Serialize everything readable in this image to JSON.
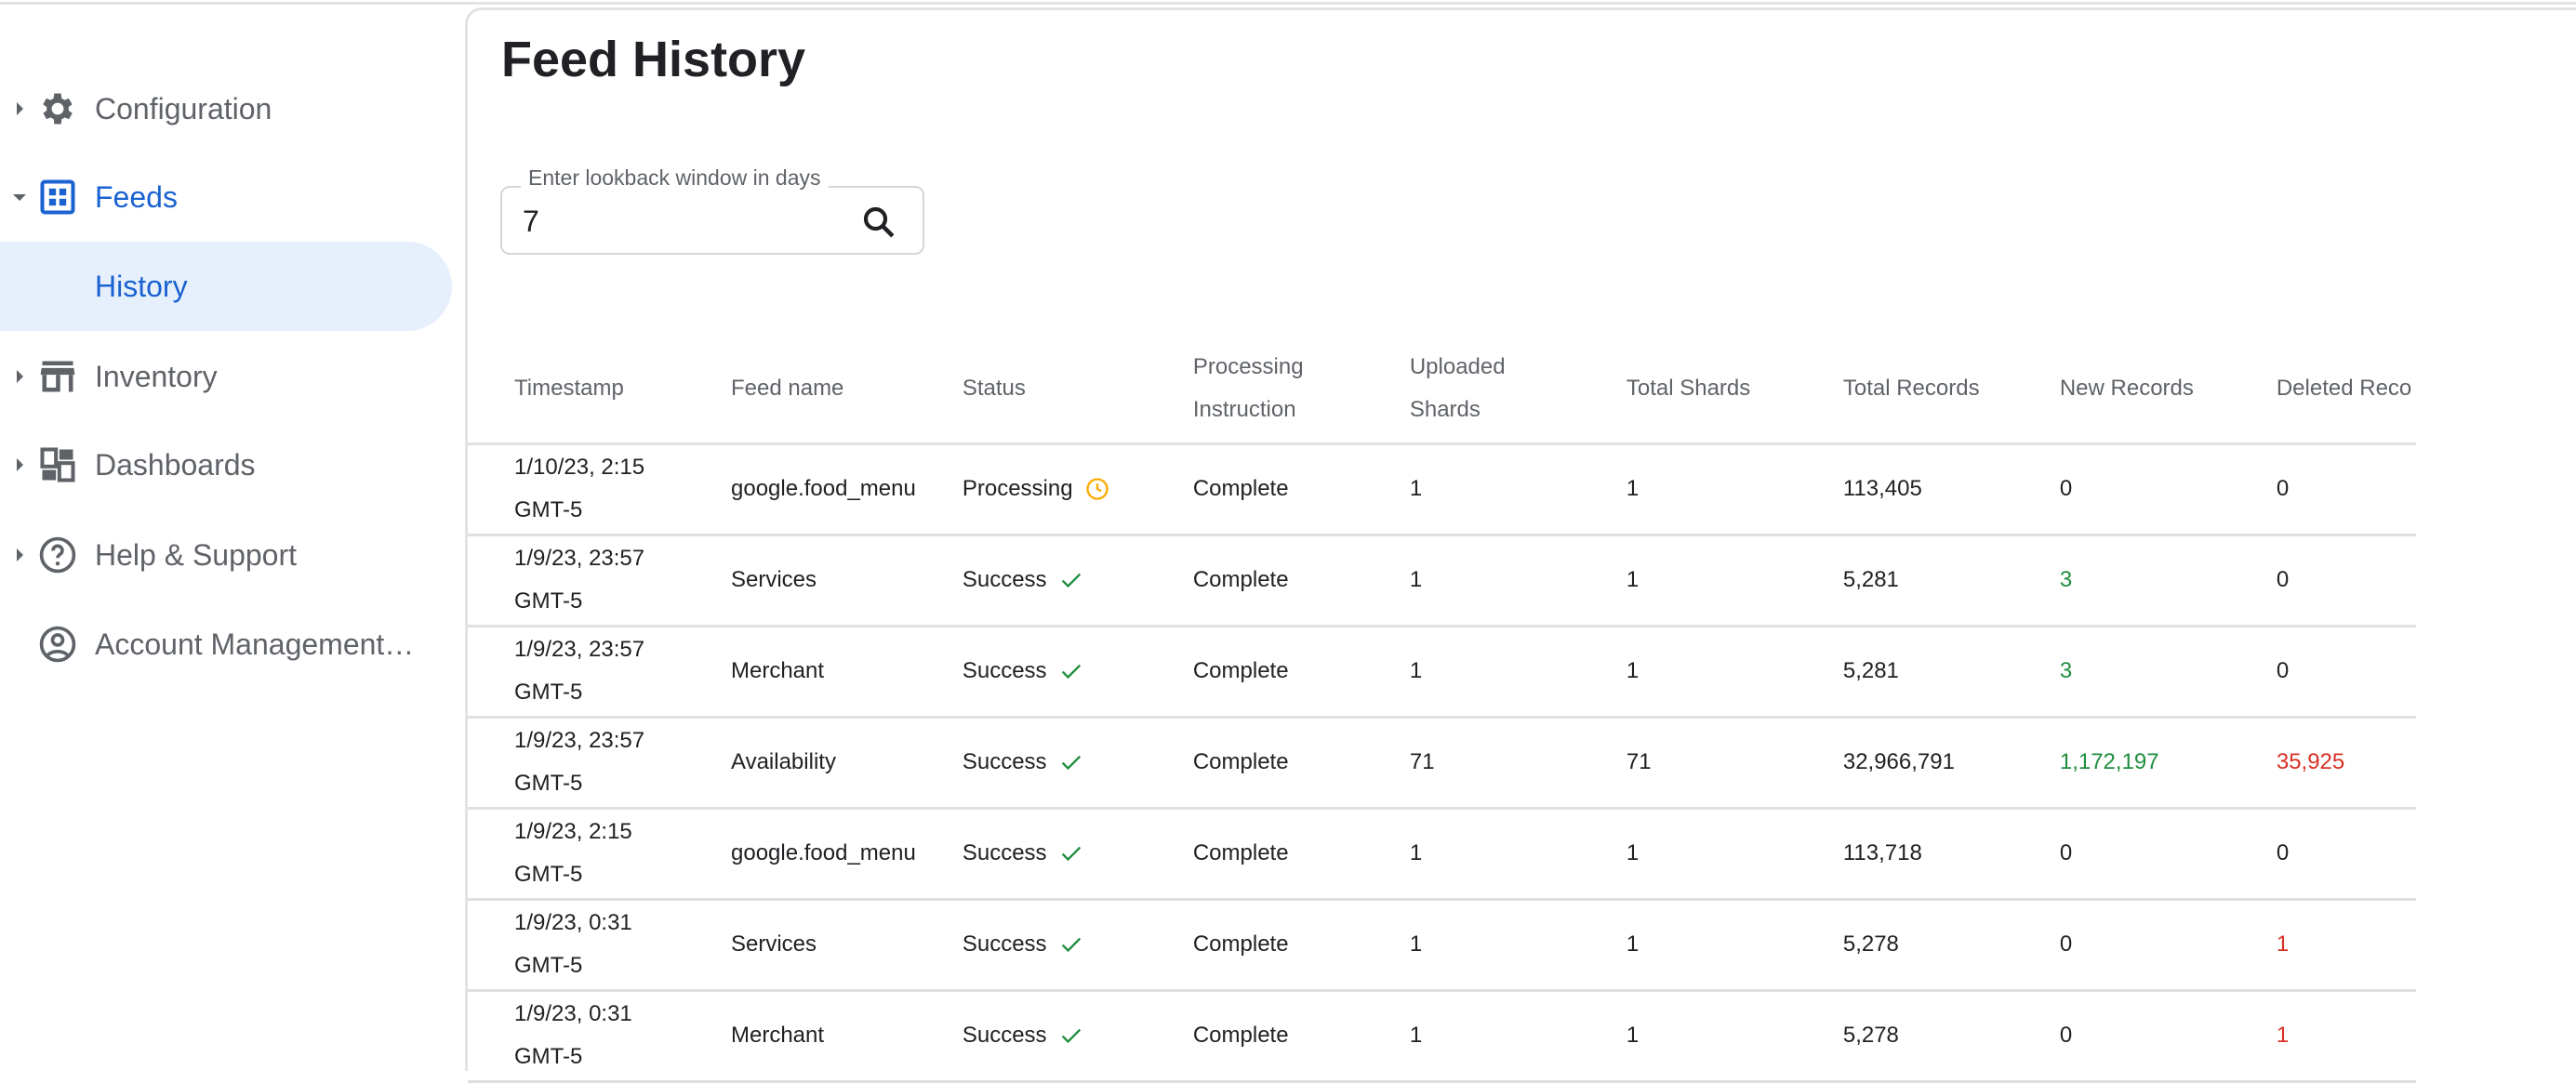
{
  "sidebar": {
    "items": [
      {
        "label": "Configuration",
        "icon": "gear-icon",
        "expander": "collapsed"
      },
      {
        "label": "Feeds",
        "icon": "grid-icon",
        "expander": "expanded",
        "active": true
      },
      {
        "label": "History",
        "selected": true
      },
      {
        "label": "Inventory",
        "icon": "store-icon",
        "expander": "collapsed"
      },
      {
        "label": "Dashboards",
        "icon": "dashboard-icon",
        "expander": "collapsed"
      },
      {
        "label": "Help & Support",
        "icon": "help-icon",
        "expander": "collapsed"
      },
      {
        "label": "Account Management…",
        "icon": "account-icon"
      }
    ]
  },
  "main": {
    "title": "Feed History",
    "lookback": {
      "label": "Enter lookback window in days",
      "value": "7"
    },
    "table": {
      "headers": [
        "Timestamp",
        "Feed name",
        "Status",
        "Processing Instruction",
        "Uploaded Shards",
        "Total Shards",
        "Total Records",
        "New Records",
        "Deleted Reco"
      ],
      "rows": [
        {
          "timestamp": "1/10/23, 2:15 GMT-5",
          "feed": "google.food_menu",
          "status": "Processing",
          "status_icon": "clock-icon",
          "instruction": "Complete",
          "uploaded": "1",
          "total_shards": "1",
          "total_records": "113,405",
          "new": "0",
          "deleted": "0"
        },
        {
          "timestamp": "1/9/23, 23:57 GMT-5",
          "feed": "Services",
          "status": "Success",
          "status_icon": "check-icon",
          "instruction": "Complete",
          "uploaded": "1",
          "total_shards": "1",
          "total_records": "5,281",
          "new": "3",
          "deleted": "0"
        },
        {
          "timestamp": "1/9/23, 23:57 GMT-5",
          "feed": "Merchant",
          "status": "Success",
          "status_icon": "check-icon",
          "instruction": "Complete",
          "uploaded": "1",
          "total_shards": "1",
          "total_records": "5,281",
          "new": "3",
          "deleted": "0"
        },
        {
          "timestamp": "1/9/23, 23:57 GMT-5",
          "feed": "Availability",
          "status": "Success",
          "status_icon": "check-icon",
          "instruction": "Complete",
          "uploaded": "71",
          "total_shards": "71",
          "total_records": "32,966,791",
          "new": "1,172,197",
          "deleted": "35,925"
        },
        {
          "timestamp": "1/9/23, 2:15 GMT-5",
          "feed": "google.food_menu",
          "status": "Success",
          "status_icon": "check-icon",
          "instruction": "Complete",
          "uploaded": "1",
          "total_shards": "1",
          "total_records": "113,718",
          "new": "0",
          "deleted": "0"
        },
        {
          "timestamp": "1/9/23, 0:31 GMT-5",
          "feed": "Services",
          "status": "Success",
          "status_icon": "check-icon",
          "instruction": "Complete",
          "uploaded": "1",
          "total_shards": "1",
          "total_records": "5,278",
          "new": "0",
          "deleted": "1"
        },
        {
          "timestamp": "1/9/23, 0:31 GMT-5",
          "feed": "Merchant",
          "status": "Success",
          "status_icon": "check-icon",
          "instruction": "Complete",
          "uploaded": "1",
          "total_shards": "1",
          "total_records": "5,278",
          "new": "0",
          "deleted": "1"
        }
      ]
    }
  },
  "colors": {
    "accent": "#1a62d1",
    "selected_bg": "#e6f0fd",
    "positive": "#1e8e3e",
    "negative": "#d93025",
    "processing": "#f9ab00"
  }
}
